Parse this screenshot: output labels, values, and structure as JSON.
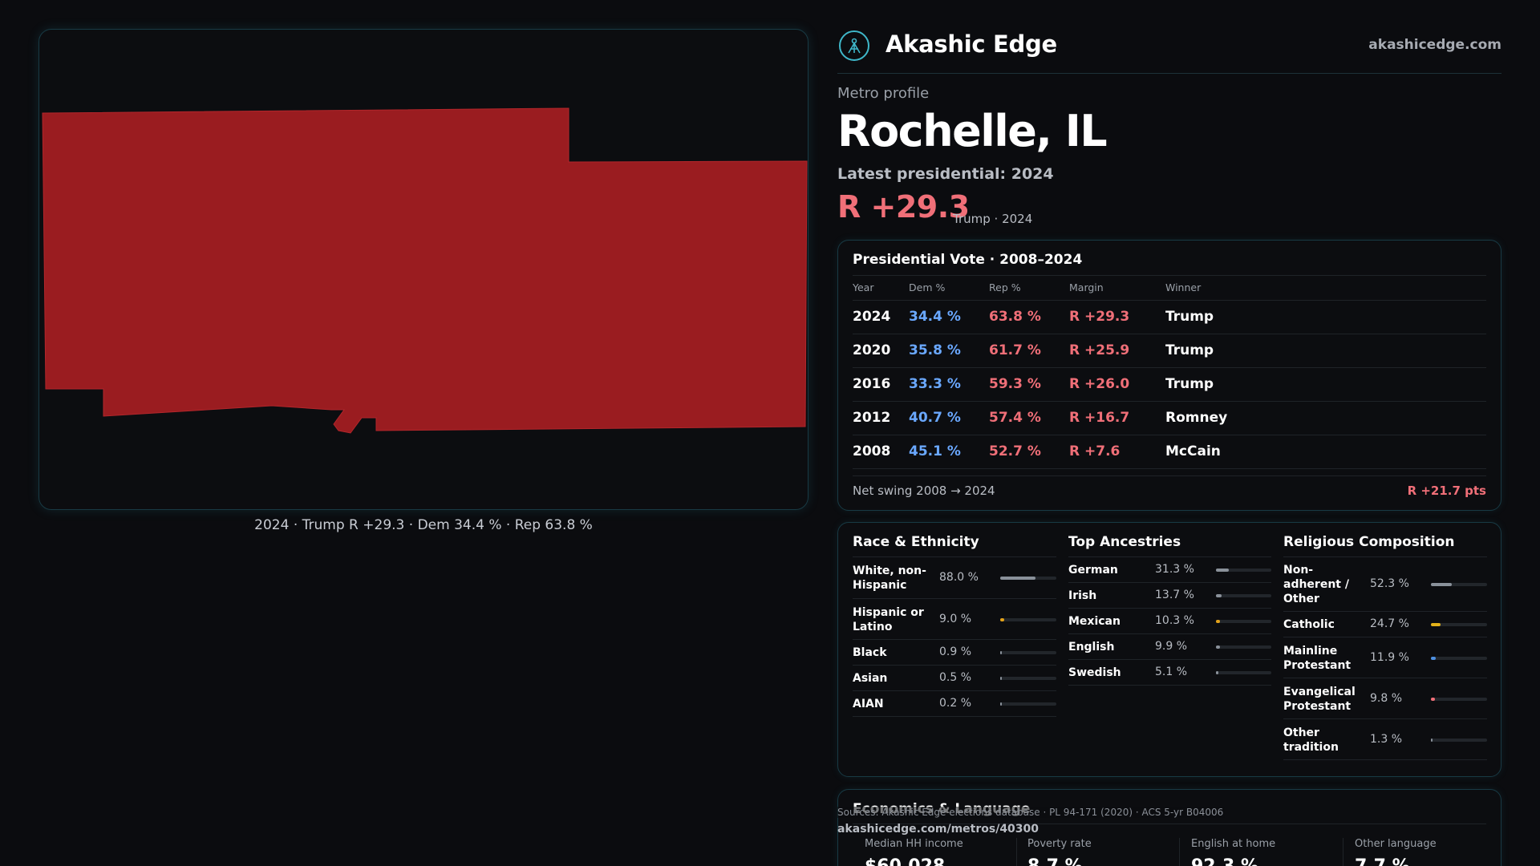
{
  "brand": {
    "name": "Akashic Edge",
    "url": "akashicedge.com"
  },
  "map": {
    "caption": "2024 · Trump R +29.3 · Dem 34.4 % · Rep 63.8 %",
    "fill_color": "#9a1c20"
  },
  "profile": {
    "label": "Metro profile",
    "title": "Rochelle, IL",
    "latest_label": "Latest presidential: 2024",
    "margin": "R +29.3",
    "margin_sub": "Trump · 2024"
  },
  "vote": {
    "title": "Presidential Vote · 2008–2024",
    "headers": {
      "year": "Year",
      "dem": "Dem %",
      "rep": "Rep %",
      "margin": "Margin",
      "winner": "Winner"
    },
    "rows": [
      {
        "year": "2024",
        "dem": "34.4 %",
        "rep": "63.8 %",
        "margin": "R +29.3",
        "winner": "Trump"
      },
      {
        "year": "2020",
        "dem": "35.8 %",
        "rep": "61.7 %",
        "margin": "R +25.9",
        "winner": "Trump"
      },
      {
        "year": "2016",
        "dem": "33.3 %",
        "rep": "59.3 %",
        "margin": "R +26.0",
        "winner": "Trump"
      },
      {
        "year": "2012",
        "dem": "40.7 %",
        "rep": "57.4 %",
        "margin": "R +16.7",
        "winner": "Romney"
      },
      {
        "year": "2008",
        "dem": "45.1 %",
        "rep": "52.7 %",
        "margin": "R +7.6",
        "winner": "McCain"
      }
    ],
    "swing_label": "Net swing 2008 → 2024",
    "swing_value": "R +21.7 pts"
  },
  "colors": {
    "dem": "#6aa8ff",
    "rep": "#f06f78",
    "accent": "#3fb7c9"
  },
  "race": {
    "title": "Race & Ethnicity",
    "items": [
      {
        "label": "White, non-Hispanic",
        "value": "88.0 %",
        "pct": 88.0,
        "color": "#8a919a"
      },
      {
        "label": "Hispanic or Latino",
        "value": "9.0 %",
        "pct": 9.0,
        "color": "#e3a21a"
      },
      {
        "label": "Black",
        "value": "0.9 %",
        "pct": 0.9,
        "color": "#8a919a"
      },
      {
        "label": "Asian",
        "value": "0.5 %",
        "pct": 0.5,
        "color": "#8a919a"
      },
      {
        "label": "AIAN",
        "value": "0.2 %",
        "pct": 0.2,
        "color": "#8a919a"
      }
    ]
  },
  "ancestry": {
    "title": "Top Ancestries",
    "items": [
      {
        "label": "German",
        "value": "31.3 %",
        "pct": 31.3,
        "color": "#8a919a"
      },
      {
        "label": "Irish",
        "value": "13.7 %",
        "pct": 13.7,
        "color": "#8a919a"
      },
      {
        "label": "Mexican",
        "value": "10.3 %",
        "pct": 10.3,
        "color": "#e3a21a"
      },
      {
        "label": "English",
        "value": "9.9 %",
        "pct": 9.9,
        "color": "#8a919a"
      },
      {
        "label": "Swedish",
        "value": "5.1 %",
        "pct": 5.1,
        "color": "#8a919a"
      }
    ]
  },
  "religion": {
    "title": "Religious Composition",
    "items": [
      {
        "label": "Non-adherent / Other",
        "value": "52.3 %",
        "pct": 52.3,
        "color": "#8a919a"
      },
      {
        "label": "Catholic",
        "value": "24.7 %",
        "pct": 24.7,
        "color": "#e3b21a"
      },
      {
        "label": "Mainline Protestant",
        "value": "11.9 %",
        "pct": 11.9,
        "color": "#4d8fe0"
      },
      {
        "label": "Evangelical Protestant",
        "value": "9.8 %",
        "pct": 9.8,
        "color": "#f06f78"
      },
      {
        "label": "Other tradition",
        "value": "1.3 %",
        "pct": 1.3,
        "color": "#8a919a"
      }
    ]
  },
  "economics": {
    "title": "Economics & Language",
    "cells": [
      {
        "label": "Median HH income",
        "value": "$60,028"
      },
      {
        "label": "Poverty rate",
        "value": "8.7 %"
      },
      {
        "label": "English at home",
        "value": "92.3 %"
      },
      {
        "label": "Other language",
        "value": "7.7 %"
      }
    ]
  },
  "footer": {
    "sources": "Sources: Akashic Edge elections database · PL 94-171 (2020) · ACS 5-yr B04006",
    "url": "akashicedge.com/metros/40300"
  }
}
